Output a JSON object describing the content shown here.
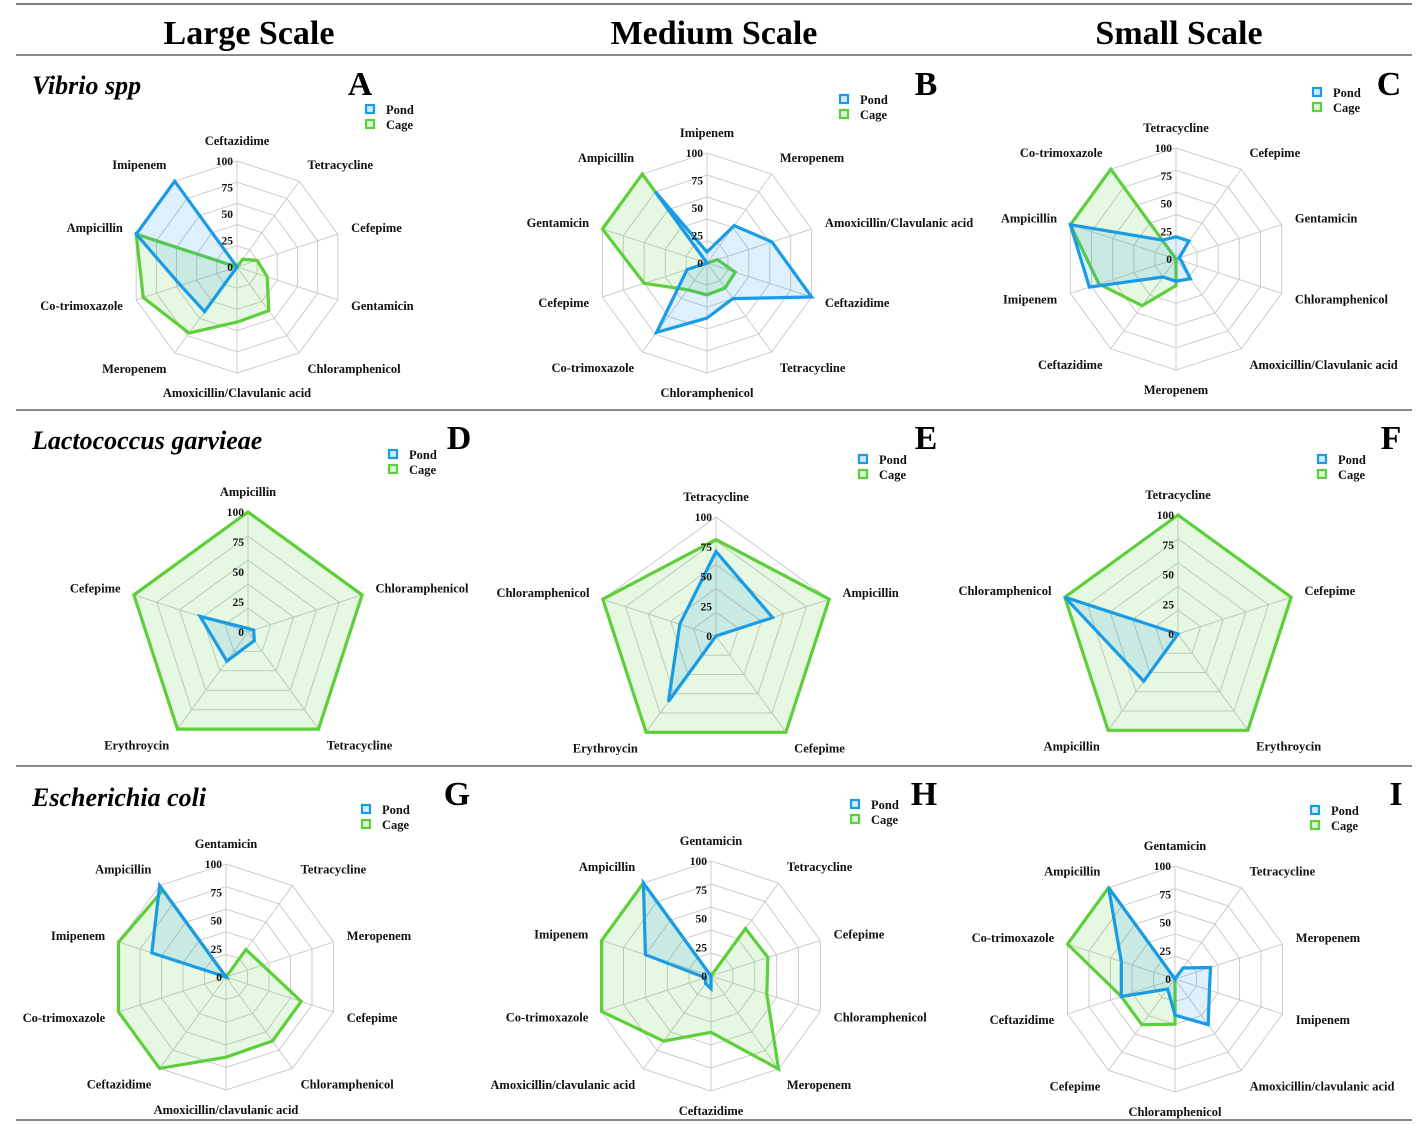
{
  "columns": [
    "Large Scale",
    "Medium Scale",
    "Small Scale"
  ],
  "rows": [
    {
      "species": "Vibrio spp"
    },
    {
      "species": "Lactococcus garvieae"
    },
    {
      "species": "Escherichia coli"
    }
  ],
  "legend": {
    "pond": "Pond",
    "cage": "Cage"
  },
  "colors": {
    "pond": "#1a9be6",
    "cage": "#5ccf3a",
    "grid": "#cccccc"
  },
  "chart_data": [
    {
      "panel": "A",
      "type": "radar",
      "row": 0,
      "col": 0,
      "rlim": [
        0,
        100
      ],
      "ticks": [
        "0",
        "25",
        "50",
        "75",
        "100"
      ],
      "legend": "top-right",
      "axes": [
        "Ceftazidime",
        "Tetracycline",
        "Cefepime",
        "Gentamicin",
        "Chloramphenicol",
        "Amoxicillin/Clavulanic acid",
        "Meropenem",
        "Co-trimoxazole",
        "Ampicillin",
        "Imipenem"
      ],
      "series": [
        {
          "name": "Pond",
          "values": [
            0,
            0,
            0,
            0,
            0,
            0,
            52,
            56,
            100,
            100
          ]
        },
        {
          "name": "Cage",
          "values": [
            0,
            9,
            20,
            30,
            51,
            52,
            77,
            93,
            100,
            0
          ]
        }
      ]
    },
    {
      "panel": "B",
      "type": "radar",
      "row": 0,
      "col": 1,
      "rlim": [
        0,
        100
      ],
      "ticks": [
        "0",
        "25",
        "50",
        "75",
        "100"
      ],
      "legend": "top-right",
      "axes": [
        "Imipenem",
        "Meropenem",
        "Amoxicillin/Clavulanic acid",
        "Ceftazidime",
        "Tetracycline",
        "Chloramphenicol",
        "Co-trimoxazole",
        "Cefepime",
        "Gentamicin",
        "Ampicillin"
      ],
      "series": [
        {
          "name": "Pond",
          "values": [
            10,
            42,
            62,
            100,
            40,
            50,
            78,
            19,
            0,
            80
          ]
        },
        {
          "name": "Cage",
          "values": [
            0,
            0,
            10,
            27,
            28,
            29,
            30,
            60,
            100,
            100
          ]
        }
      ]
    },
    {
      "panel": "C",
      "type": "radar",
      "row": 0,
      "col": 2,
      "rlim": [
        0,
        100
      ],
      "ticks": [
        "0",
        "25",
        "50",
        "75",
        "100"
      ],
      "legend": "top-right",
      "axes": [
        "Tetracycline",
        "Cefepime",
        "Gentamicin",
        "Chloramphenicol",
        "Amoxicillin/Clavulanic acid",
        "Meropenem",
        "Ceftazidime",
        "Imipenem",
        "Ampicillin",
        "Co-trimoxazole"
      ],
      "series": [
        {
          "name": "Pond",
          "values": [
            20,
            20,
            3,
            5,
            22,
            20,
            20,
            82,
            100,
            21
          ]
        },
        {
          "name": "Cage",
          "values": [
            0,
            0,
            0,
            0,
            0,
            24,
            52,
            73,
            100,
            100
          ]
        }
      ]
    },
    {
      "panel": "D",
      "type": "radar",
      "row": 1,
      "col": 0,
      "rlim": [
        0,
        100
      ],
      "ticks": [
        "0",
        "25",
        "50",
        "75",
        "100"
      ],
      "legend": "top-right",
      "axes": [
        "Ampicillin",
        "Chloramphenicol",
        "Tetracycline",
        "Erythroycin",
        "Cefepime"
      ],
      "series": [
        {
          "name": "Pond",
          "values": [
            3,
            5,
            9,
            30,
            42
          ]
        },
        {
          "name": "Cage",
          "values": [
            100,
            100,
            100,
            100,
            100
          ]
        }
      ]
    },
    {
      "panel": "E",
      "type": "radar",
      "row": 1,
      "col": 1,
      "rlim": [
        0,
        100
      ],
      "ticks": [
        "0",
        "25",
        "50",
        "75",
        "100"
      ],
      "legend": "top-right",
      "axes": [
        "Tetracycline",
        "Ampicillin",
        "Cefepime",
        "Erythroycin",
        "Chloramphenicol"
      ],
      "series": [
        {
          "name": "Pond",
          "values": [
            71,
            50,
            0,
            68,
            32
          ]
        },
        {
          "name": "Cage",
          "values": [
            81,
            100,
            100,
            100,
            100
          ]
        }
      ]
    },
    {
      "panel": "F",
      "type": "radar",
      "row": 1,
      "col": 2,
      "rlim": [
        0,
        100
      ],
      "ticks": [
        "0",
        "25",
        "50",
        "75",
        "100"
      ],
      "legend": "top-right",
      "axes": [
        "Tetracycline",
        "Cefepime",
        "Erythroycin",
        "Ampicillin",
        "Chloramphenicol"
      ],
      "series": [
        {
          "name": "Pond",
          "values": [
            0,
            0,
            0,
            49,
            100
          ]
        },
        {
          "name": "Cage",
          "values": [
            100,
            100,
            100,
            100,
            100
          ]
        }
      ]
    },
    {
      "panel": "G",
      "type": "radar",
      "row": 2,
      "col": 0,
      "rlim": [
        0,
        100
      ],
      "ticks": [
        "0",
        "25",
        "50",
        "75",
        "100"
      ],
      "legend": "top-right",
      "axes": [
        "Gentamicin",
        "Tetracycline",
        "Meropenem",
        "Cefepime",
        "Chloramphenicol",
        "Amoxicillin/clavulanic acid",
        "Ceftazidime",
        "Co-trimoxazole",
        "Imipenem",
        "Ampicillin"
      ],
      "series": [
        {
          "name": "Pond",
          "values": [
            0,
            0,
            0,
            0,
            0,
            0,
            0,
            0,
            69,
            100
          ]
        },
        {
          "name": "Cage",
          "values": [
            0,
            30,
            34,
            70,
            70,
            71,
            100,
            100,
            100,
            95
          ]
        }
      ]
    },
    {
      "panel": "H",
      "type": "radar",
      "row": 2,
      "col": 1,
      "rlim": [
        0,
        100
      ],
      "ticks": [
        "0",
        "25",
        "50",
        "75",
        "100"
      ],
      "legend": "top-right",
      "axes": [
        "Gentamicin",
        "Tetracycline",
        "Cefepime",
        "Chloramphenicol",
        "Meropenem",
        "Ceftazidime",
        "Amoxicillin/clavulanic acid",
        "Co-trimoxazole",
        "Imipenem",
        "Ampicillin"
      ],
      "series": [
        {
          "name": "Pond",
          "values": [
            0,
            0,
            0,
            0,
            0,
            11,
            8,
            5,
            60,
            100
          ]
        },
        {
          "name": "Cage",
          "values": [
            0,
            51,
            52,
            51,
            100,
            49,
            70,
            100,
            100,
            100
          ]
        }
      ]
    },
    {
      "panel": "I",
      "type": "radar",
      "row": 2,
      "col": 2,
      "rlim": [
        0,
        100
      ],
      "ticks": [
        "0",
        "25",
        "50",
        "75",
        "100"
      ],
      "legend": "top-right",
      "axes": [
        "Gentamicin",
        "Tetracycline",
        "Meropenem",
        "Imipenem",
        "Amoxicillin/clavulanic acid",
        "Chloramphenicol",
        "Cefepime",
        "Ceftazidime",
        "Co-trimoxazole",
        "Ampicillin"
      ],
      "series": [
        {
          "name": "Pond",
          "values": [
            0,
            12,
            33,
            32,
            50,
            32,
            11,
            50,
            50,
            100
          ]
        },
        {
          "name": "Cage",
          "values": [
            0,
            0,
            0,
            0,
            0,
            40,
            50,
            50,
            100,
            100
          ]
        }
      ]
    }
  ]
}
